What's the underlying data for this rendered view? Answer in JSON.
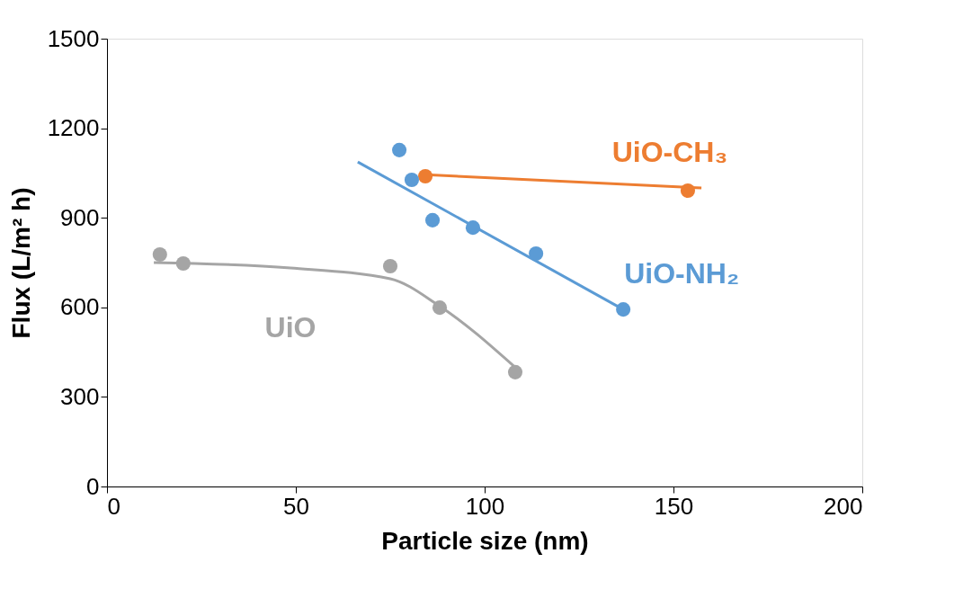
{
  "chart_data": {
    "type": "scatter",
    "xlabel": "Particle size (nm)",
    "ylabel": "Flux (L/m² h)",
    "xlim": [
      0,
      200
    ],
    "xticks": [
      0,
      50,
      100,
      150,
      200
    ],
    "ylim": [
      0,
      1500
    ],
    "yticks": [
      0,
      300,
      600,
      900,
      1200,
      1500
    ],
    "grid": false,
    "series": [
      {
        "name": "UiO-CH₃",
        "color": "#ed7d31",
        "marker": "circle",
        "x": [
          84.3,
          153.8
        ],
        "values": [
          1039,
          991
        ]
      },
      {
        "name": "UiO-NH₂",
        "color": "#5b9bd5",
        "marker": "circle",
        "x": [
          77.4,
          80.7,
          86.2,
          96.9,
          113.6,
          136.7
        ],
        "values": [
          1127,
          1027,
          892,
          867,
          780,
          593
        ]
      },
      {
        "name": "UiO",
        "color": "#a5a5a5",
        "marker": "circle",
        "x": [
          14.0,
          20.2,
          75.0,
          88.1,
          108.1
        ],
        "values": [
          777,
          747,
          738,
          599,
          383
        ]
      },
      {
        "color": "#ed7d31",
        "type": "line",
        "marker": "none",
        "line_style": "solid",
        "x": [
          83.1,
          157.4
        ],
        "values": [
          1045,
          1000
        ]
      },
      {
        "color": "#5b9bd5",
        "type": "line",
        "marker": "none",
        "line_style": "solid",
        "x": [
          66.4,
          136.7
        ],
        "values": [
          1087,
          593
        ]
      },
      {
        "color": "#a5a5a5",
        "type": "line",
        "marker": "none",
        "line_style": "solid",
        "x": [
          12.4,
          48.6,
          75.0,
          88.0,
          108.0
        ],
        "values": [
          750,
          732,
          696,
          605,
          400
        ]
      }
    ]
  }
}
